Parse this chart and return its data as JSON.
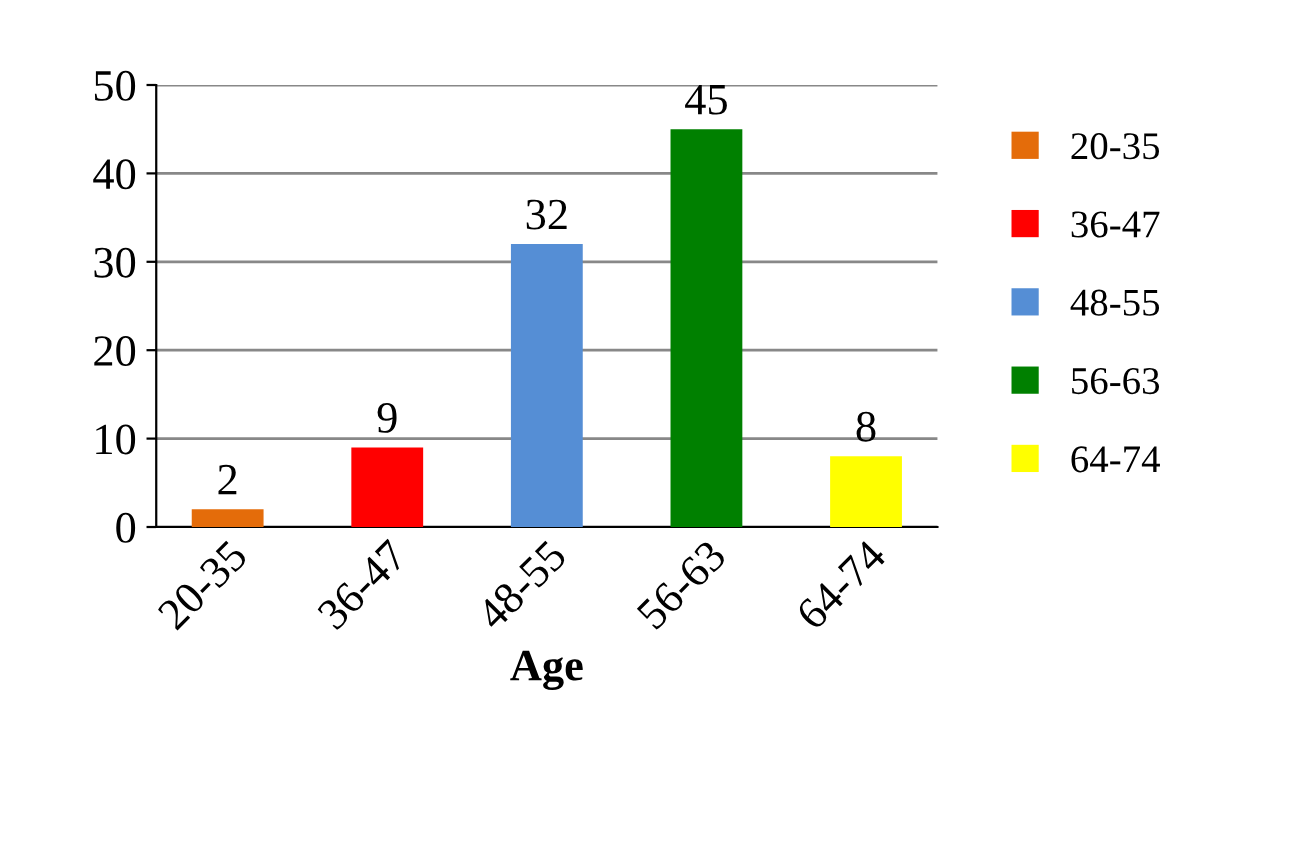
{
  "chart_data": {
    "type": "bar",
    "xlabel": "Age",
    "categories": [
      "20-35",
      "36-47",
      "48-55",
      "56-63",
      "64-74"
    ],
    "series": [
      {
        "name": "20-35",
        "color": "#e46c0a",
        "values": [
          2,
          null,
          null,
          null,
          null
        ]
      },
      {
        "name": "36-47",
        "color": "#ff0000",
        "values": [
          null,
          9,
          null,
          null,
          null
        ]
      },
      {
        "name": "48-55",
        "color": "#558ed5",
        "values": [
          null,
          null,
          32,
          null,
          null
        ]
      },
      {
        "name": "56-63",
        "color": "#008000",
        "values": [
          null,
          null,
          null,
          45,
          null
        ]
      },
      {
        "name": "64-74",
        "color": "#ffff00",
        "values": [
          null,
          null,
          null,
          null,
          8
        ]
      }
    ],
    "ylim": [
      0,
      50
    ],
    "yticks": [
      0,
      10,
      20,
      30,
      40,
      50
    ],
    "grid": "y",
    "legend": "right",
    "data_labels": true
  }
}
